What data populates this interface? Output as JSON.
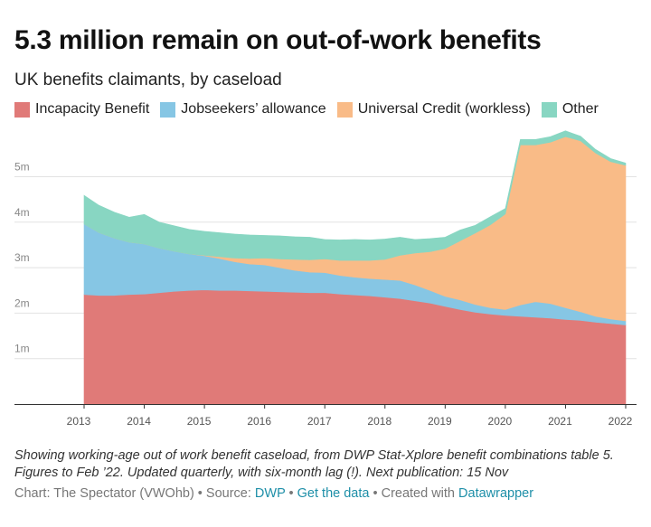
{
  "chart_data": {
    "type": "area",
    "stacked": true,
    "title": "5.3 million remain on out-of-work benefits",
    "subtitle": "UK benefits claimants, by caseload",
    "x": [
      2013.0,
      2013.25,
      2013.5,
      2013.75,
      2014.0,
      2014.25,
      2014.5,
      2014.75,
      2015.0,
      2015.25,
      2015.5,
      2015.75,
      2016.0,
      2016.25,
      2016.5,
      2016.75,
      2017.0,
      2017.25,
      2017.5,
      2017.75,
      2018.0,
      2018.25,
      2018.5,
      2018.75,
      2019.0,
      2019.25,
      2019.5,
      2019.75,
      2020.0,
      2020.25,
      2020.5,
      2020.75,
      2021.0,
      2021.25,
      2021.5,
      2021.75,
      2022.0
    ],
    "x_ticks": [
      "2013",
      "2014",
      "2015",
      "2016",
      "2017",
      "2018",
      "2019",
      "2020",
      "2021",
      "2022"
    ],
    "ylim": [
      0,
      5.9
    ],
    "y_ticks": [
      {
        "value": 1,
        "label": "1m"
      },
      {
        "value": 2,
        "label": "2m"
      },
      {
        "value": 3,
        "label": "3m"
      },
      {
        "value": 4,
        "label": "4m"
      },
      {
        "value": 5,
        "label": "5m"
      }
    ],
    "grid": true,
    "series": [
      {
        "name": "Incapacity Benefit",
        "color": "#e07a78",
        "values": [
          2.41,
          2.39,
          2.39,
          2.41,
          2.42,
          2.45,
          2.48,
          2.5,
          2.51,
          2.5,
          2.5,
          2.49,
          2.48,
          2.47,
          2.46,
          2.45,
          2.45,
          2.42,
          2.4,
          2.38,
          2.35,
          2.32,
          2.27,
          2.22,
          2.15,
          2.08,
          2.02,
          1.98,
          1.95,
          1.93,
          1.91,
          1.89,
          1.86,
          1.84,
          1.8,
          1.77,
          1.74
        ]
      },
      {
        "name": "Jobseekers’ allowance",
        "color": "#86c6e4",
        "values": [
          1.55,
          1.38,
          1.26,
          1.15,
          1.1,
          0.98,
          0.88,
          0.8,
          0.75,
          0.7,
          0.63,
          0.59,
          0.58,
          0.53,
          0.48,
          0.45,
          0.44,
          0.41,
          0.39,
          0.38,
          0.39,
          0.4,
          0.35,
          0.28,
          0.22,
          0.21,
          0.17,
          0.14,
          0.13,
          0.25,
          0.34,
          0.32,
          0.26,
          0.19,
          0.13,
          0.1,
          0.09
        ]
      },
      {
        "name": "Universal Credit (workless)",
        "color": "#f9bb87",
        "values": [
          0.0,
          0.0,
          0.0,
          0.0,
          0.0,
          0.0,
          0.0,
          0.0,
          0.01,
          0.04,
          0.08,
          0.12,
          0.15,
          0.19,
          0.24,
          0.27,
          0.3,
          0.33,
          0.37,
          0.4,
          0.44,
          0.55,
          0.7,
          0.85,
          1.05,
          1.3,
          1.57,
          1.82,
          2.1,
          3.52,
          3.45,
          3.55,
          3.76,
          3.76,
          3.59,
          3.46,
          3.42
        ]
      },
      {
        "name": "Other",
        "color": "#88d6c2",
        "values": [
          0.63,
          0.6,
          0.57,
          0.55,
          0.65,
          0.57,
          0.56,
          0.54,
          0.53,
          0.53,
          0.53,
          0.52,
          0.5,
          0.51,
          0.5,
          0.5,
          0.43,
          0.45,
          0.46,
          0.45,
          0.45,
          0.4,
          0.3,
          0.29,
          0.25,
          0.24,
          0.17,
          0.18,
          0.12,
          0.12,
          0.12,
          0.12,
          0.13,
          0.1,
          0.08,
          0.07,
          0.05
        ]
      }
    ]
  },
  "notes": "Showing working-age out of work benefit caseload, from DWP Stat-Xplore benefit combinations table 5. Figures to Feb ’22. Updated quarterly, with six-month lag (!). Next publication: 15 Nov",
  "footer": {
    "chart_by": "Chart: The Spectator (VWOhb)",
    "sep": " • ",
    "source_label": "Source: ",
    "source_link": "DWP",
    "get_data": "Get the data",
    "created_with": "Created with ",
    "datawrapper": "Datawrapper"
  }
}
